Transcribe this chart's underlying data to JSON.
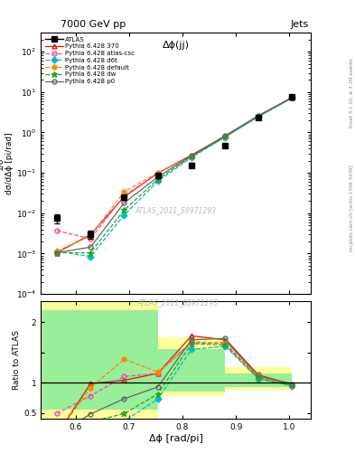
{
  "title_top": "7000 GeV pp",
  "title_right": "Jets",
  "plot_title": "Δϕ(jj)",
  "xlabel": "Δϕ [rad/pi]",
  "ylabel_main": "1/σ;dσ/dΔϕ [pi/rad]",
  "ylabel_ratio": "Ratio to ATLAS",
  "watermark": "ATLAS_2011_S8971293",
  "right_label": "mcplots.cern.ch [arXiv:1306.3436]",
  "right_label2": "Rivet 3.1.10; ≥ 3.1M events",
  "atlas_x": [
    0.565,
    0.628,
    0.691,
    0.754,
    0.817,
    0.88,
    0.942,
    1.005
  ],
  "atlas_y": [
    0.0075,
    0.003,
    0.0245,
    0.085,
    0.155,
    0.48,
    2.3,
    7.5
  ],
  "atlas_yerr": [
    0.002,
    0.0007,
    0.003,
    0.01,
    0.02,
    0.05,
    0.2,
    0.5
  ],
  "py370_y": [
    0.00105,
    0.00295,
    0.0255,
    0.098,
    0.275,
    0.82,
    2.55,
    7.35
  ],
  "pyatlascsc_y": [
    0.0037,
    0.00235,
    0.027,
    0.098,
    0.26,
    0.79,
    2.5,
    7.2
  ],
  "pyd6t_y": [
    0.00115,
    0.00085,
    0.009,
    0.062,
    0.24,
    0.77,
    2.45,
    7.1
  ],
  "pydefault_y": [
    0.00115,
    0.00275,
    0.034,
    0.1,
    0.255,
    0.8,
    2.52,
    7.2
  ],
  "pydw_y": [
    0.00105,
    0.00105,
    0.012,
    0.069,
    0.255,
    0.78,
    2.47,
    7.15
  ],
  "pyp0_y": [
    0.00105,
    0.00145,
    0.018,
    0.079,
    0.265,
    0.83,
    2.6,
    7.3
  ],
  "ylim_main": [
    0.0001,
    300
  ],
  "ylim_ratio": [
    0.4,
    2.35
  ],
  "xlim": [
    0.535,
    1.04
  ],
  "ratio_bin_edges": [
    0.535,
    0.565,
    0.628,
    0.691,
    0.754,
    0.817,
    0.88,
    0.942,
    1.005
  ],
  "yellow_lo": [
    0.4,
    0.4,
    0.4,
    0.4,
    0.78,
    0.78,
    0.88,
    0.88
  ],
  "yellow_hi": [
    2.35,
    2.35,
    2.35,
    2.35,
    1.75,
    1.75,
    1.25,
    1.25
  ],
  "green_lo": [
    0.55,
    0.55,
    0.55,
    0.55,
    0.85,
    0.85,
    0.93,
    0.93
  ],
  "green_hi": [
    2.2,
    2.2,
    2.2,
    2.2,
    1.55,
    1.55,
    1.15,
    1.15
  ],
  "color_370": "#cc2200",
  "color_atlascsc": "#ff44aa",
  "color_d6t": "#00bbcc",
  "color_default": "#ff8800",
  "color_dw": "#22aa22",
  "color_p0": "#666666"
}
